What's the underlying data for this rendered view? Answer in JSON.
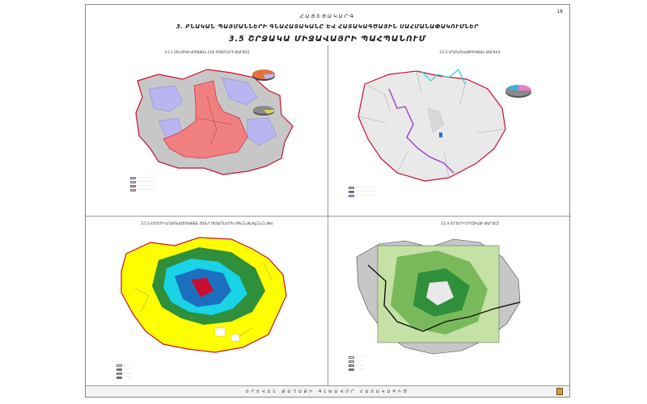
{
  "page": {
    "number": "18",
    "header_top": "ՀԱՅԵՑԱԿԱՐԳ",
    "header_section": "3.  ԲՆԱԿԱՆ ՊԱՅՄԱՆՆԵՐԻ ԳՆԱՀԱՏԱԿԱՆԸ ԵՎ ՀԱՏԱԿԱԳԾԱՅԻՆ ՍԱՀՄԱՆԱՓԱԿՈՒՄՆԵՐ",
    "header_main": "3.5 ՇՐՋԱԿԱ ՄԻՋԱՎԱՅՐԻ ՊԱՀՊԱՆՈՒՄ",
    "footer": "ԵՐԵՎԱՆ  ՔԱՂԱՔԻ  ԳԼԽԱՎՈՐ  ՀԱՏԱԿԱԳԻԾ"
  },
  "quadrants": [
    {
      "title": "3.5.1  ՍԵՆՍԻՏԻՎՈՒԹՅԱՆ ԸՍՏ ԳՈՏԻՆԵՐԻ ՔԱՐՏԵԶ"
    },
    {
      "title": "3.5.2  ԱՂՄԿՈՏՎԱԾՈՒԹՅԱՆ ՔԱՐՏԵԶ"
    },
    {
      "title": "3.5.3  ՀՈՂԵՐԻ ԱՂՏՈՏՎԱԾՈՒԹՅԱՆ ԾԱՆՐ ՄԵՏԱՂՆԵՐՈՎ (Pb,Cu,Ni,Ag,Co,Cr,Mo)"
    },
    {
      "title": "3.5.4  ՀՈՂԵՐԻ ԷՐՈԶԻԱՅԻ ՔԱՐՏԵԶ"
    }
  ],
  "colors": {
    "boundary": "#c8102e",
    "zone_red": "#f08080",
    "zone_blue": "#b9b5f0",
    "ground_grey": "#c7c7c7",
    "river_purple": "#9b3fc4",
    "river_cyan": "#27d5d5",
    "yellow": "#ffff00",
    "green_light": "#c5e1a5",
    "green_mid": "#79b95b",
    "green_dark": "#2f8f3a",
    "cyan": "#19d3e6",
    "pie_pink": "#f07cc8",
    "pie_grey": "#8a8a8a",
    "logo": "#caa23a"
  }
}
